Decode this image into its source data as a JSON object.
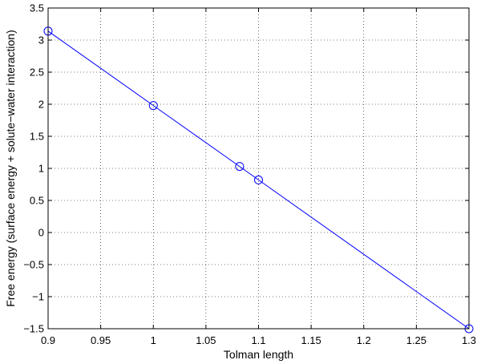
{
  "chart_data": {
    "type": "line",
    "title": "",
    "xlabel": "Tolman length",
    "ylabel": "Free energy (surface energy + solute−water interaction)",
    "xlim": [
      0.9,
      1.3
    ],
    "ylim": [
      -1.5,
      3.5
    ],
    "xticks": [
      0.9,
      0.95,
      1.0,
      1.05,
      1.1,
      1.15,
      1.2,
      1.25,
      1.3
    ],
    "yticks": [
      -1.5,
      -1,
      -0.5,
      0,
      0.5,
      1,
      1.5,
      2,
      2.5,
      3,
      3.5
    ],
    "xtick_labels": [
      "0.9",
      "0.95",
      "1",
      "1.05",
      "1.1",
      "1.15",
      "1.2",
      "1.25",
      "1.3"
    ],
    "ytick_labels": [
      "−1.5",
      "−1",
      "−0.5",
      "0",
      "0.5",
      "1",
      "1.5",
      "2",
      "2.5",
      "3",
      "3.5"
    ],
    "grid": true,
    "series": [
      {
        "x": [
          0.9,
          1.0,
          1.082,
          1.1,
          1.3
        ],
        "y": [
          3.14,
          1.98,
          1.03,
          0.82,
          -1.5
        ],
        "marker": "circle-open",
        "color": "#0000ff"
      }
    ]
  }
}
